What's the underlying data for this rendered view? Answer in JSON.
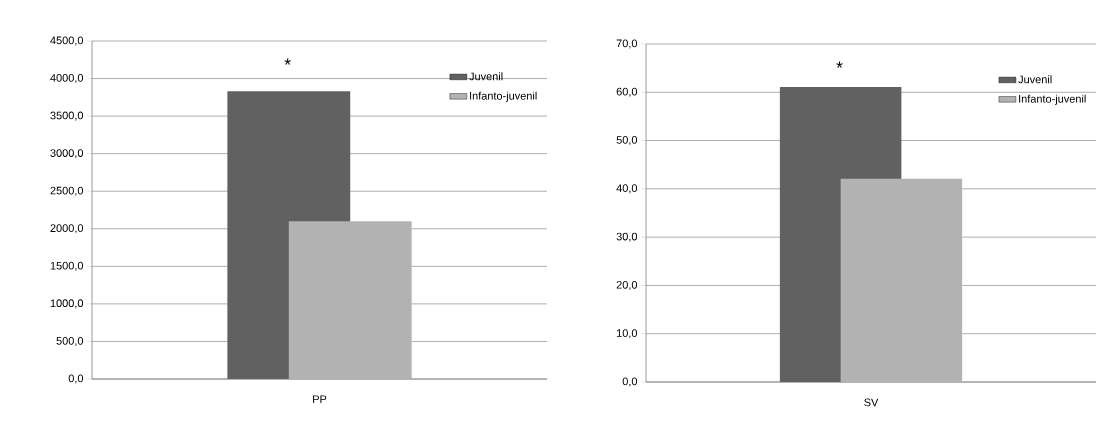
{
  "chart_data": [
    {
      "type": "bar",
      "categories": [
        "PP"
      ],
      "series": [
        {
          "name": "Juvenil",
          "color": "#616161",
          "values": [
            3830
          ]
        },
        {
          "name": "Infanto-juvenil",
          "color": "#b2b2b2",
          "values": [
            2100
          ]
        }
      ],
      "ylim": [
        0,
        4500
      ],
      "yticks": [
        {
          "value": 0,
          "label": "0,0"
        },
        {
          "value": 500,
          "label": "500,0"
        },
        {
          "value": 1000,
          "label": "1000,0"
        },
        {
          "value": 1500,
          "label": "1500,0"
        },
        {
          "value": 2000,
          "label": "2000,0"
        },
        {
          "value": 2500,
          "label": "2500,0"
        },
        {
          "value": 3000,
          "label": "3000,0"
        },
        {
          "value": 3500,
          "label": "3500,0"
        },
        {
          "value": 4000,
          "label": "4000,0"
        },
        {
          "value": 4500,
          "label": "4500,0"
        }
      ],
      "grid": "y",
      "legend": "top right",
      "annotations": [
        "*"
      ]
    },
    {
      "type": "bar",
      "categories": [
        "SV"
      ],
      "series": [
        {
          "name": "Juvenil",
          "color": "#616161",
          "values": [
            61.1
          ]
        },
        {
          "name": "Infanto-juvenil",
          "color": "#b2b2b2",
          "values": [
            42.1
          ]
        }
      ],
      "ylim": [
        0,
        70
      ],
      "yticks": [
        {
          "value": 0,
          "label": "0,0"
        },
        {
          "value": 10,
          "label": "10,0"
        },
        {
          "value": 20,
          "label": "20,0"
        },
        {
          "value": 30,
          "label": "30,0"
        },
        {
          "value": 40,
          "label": "40,0"
        },
        {
          "value": 50,
          "label": "50,0"
        },
        {
          "value": 60,
          "label": "60,0"
        },
        {
          "value": 70,
          "label": "70,0"
        }
      ],
      "grid": "y",
      "legend": "top right",
      "annotations": [
        "*"
      ]
    }
  ]
}
